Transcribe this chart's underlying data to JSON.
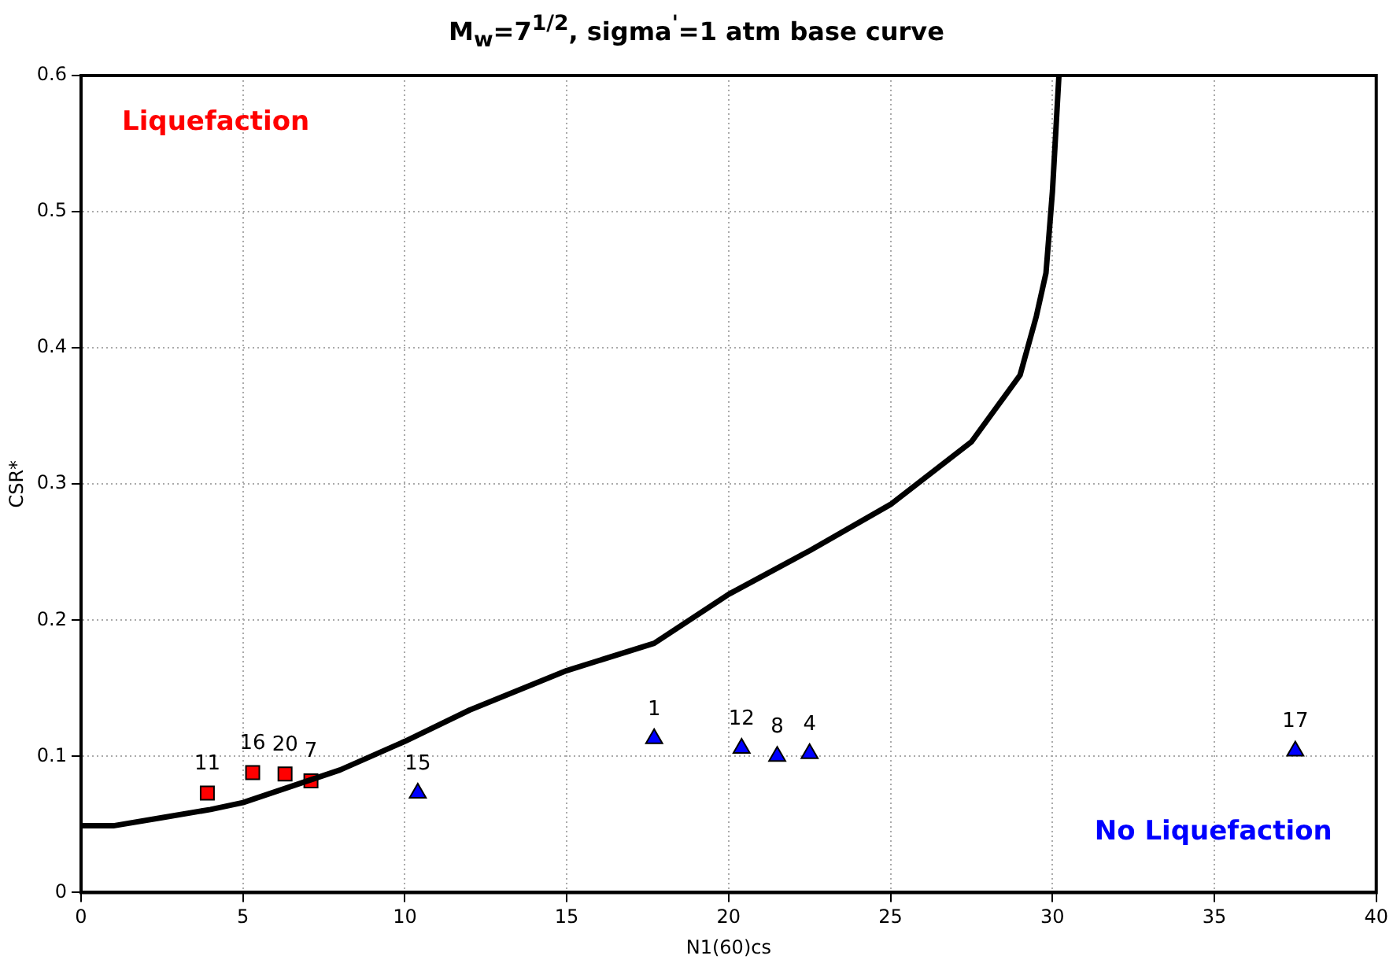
{
  "chart_data": {
    "type": "scatter",
    "title": "M$_{w}$=7$^{1/2}$, sigma$^{'}$=1 atm base curve",
    "xlabel": "N1(60)cs",
    "ylabel": "CSR*",
    "xlim": [
      0,
      40
    ],
    "xticks": [
      0,
      5,
      10,
      15,
      20,
      25,
      30,
      35,
      40
    ],
    "ylim": [
      0,
      0.6
    ],
    "yticks": [
      0,
      0.1,
      0.2,
      0.3,
      0.4,
      0.5,
      0.6
    ],
    "grid": true,
    "legend": false,
    "annotations": [
      "Liquefaction",
      "No Liquefaction",
      {
        "text": "11",
        "x": 3.9,
        "y": 0.073
      },
      {
        "text": "16",
        "x": 5.3,
        "y": 0.088
      },
      {
        "text": "20",
        "x": 6.3,
        "y": 0.087
      },
      {
        "text": "7",
        "x": 7.1,
        "y": 0.082
      },
      {
        "text": "15",
        "x": 10.4,
        "y": 0.073
      },
      {
        "text": "1",
        "x": 17.7,
        "y": 0.113
      },
      {
        "text": "12",
        "x": 20.4,
        "y": 0.106
      },
      {
        "text": "8",
        "x": 21.5,
        "y": 0.1
      },
      {
        "text": "4",
        "x": 22.5,
        "y": 0.102
      },
      {
        "text": "17",
        "x": 37.5,
        "y": 0.104
      }
    ],
    "series": [
      {
        "type": "line",
        "color": "#000000",
        "marker": "none",
        "line_style": "solid",
        "x": [
          0,
          1,
          2.5,
          4,
          5,
          6.5,
          8,
          10,
          12,
          15,
          17.7,
          20,
          22.5,
          25,
          27.5,
          29,
          29.5,
          29.8,
          30,
          30.2
        ],
        "values": [
          0.049,
          0.049,
          0.055,
          0.061,
          0.066,
          0.078,
          0.09,
          0.111,
          0.134,
          0.163,
          0.183,
          0.219,
          0.251,
          0.285,
          0.331,
          0.38,
          0.423,
          0.455,
          0.515,
          0.6
        ]
      },
      {
        "type": "scatter",
        "color": "#ff0000",
        "marker": "square",
        "x": [
          3.9,
          5.3,
          6.3,
          7.1
        ],
        "values": [
          0.073,
          0.088,
          0.087,
          0.082
        ]
      },
      {
        "type": "scatter",
        "color": "#0000ff",
        "marker": "triangle",
        "x": [
          10.4,
          17.7,
          20.4,
          21.5,
          22.5,
          37.5
        ],
        "values": [
          0.073,
          0.113,
          0.106,
          0.1,
          0.102,
          0.104
        ]
      }
    ]
  }
}
